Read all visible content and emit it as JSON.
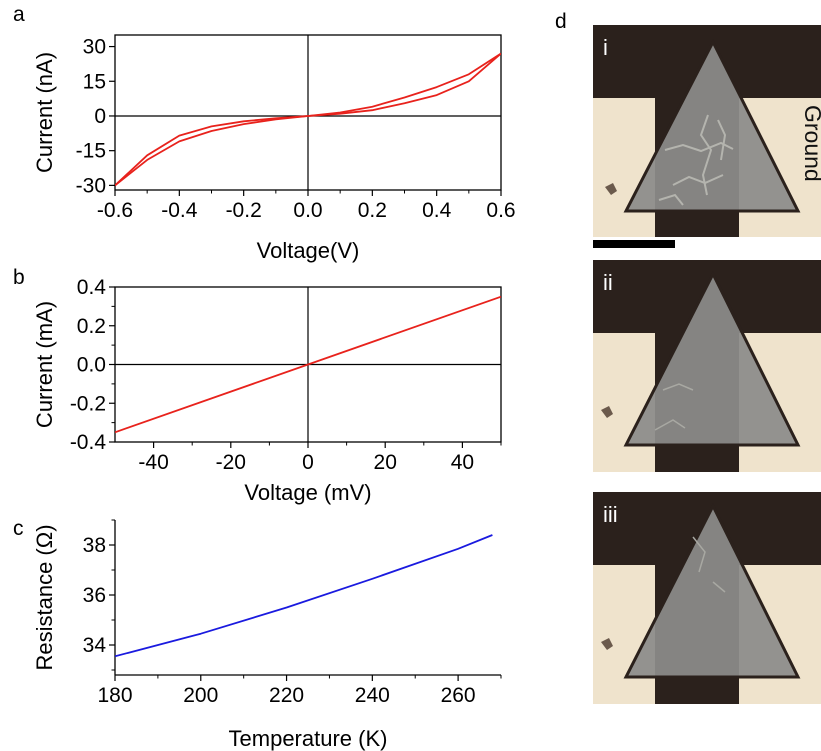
{
  "chart_data": [
    {
      "panel": "a",
      "type": "line",
      "xlabel": "Voltage(V)",
      "ylabel": "Current (nA)",
      "xlim": [
        -0.6,
        0.6
      ],
      "ylim": [
        -32,
        35
      ],
      "xticks": [
        -0.6,
        -0.4,
        -0.2,
        0.0,
        0.2,
        0.4,
        0.6
      ],
      "xtick_labels": [
        "-0.6",
        "-0.4",
        "-0.2",
        "0.0",
        "0.2",
        "0.4",
        "0.6"
      ],
      "yticks": [
        -30,
        -15,
        0,
        15,
        30
      ],
      "ytick_labels": [
        "-30",
        "-15",
        "0",
        "15",
        "30"
      ],
      "color": "#e8221c",
      "series": [
        {
          "x": [
            -0.6,
            -0.5,
            -0.4,
            -0.3,
            -0.2,
            -0.1,
            0.0,
            0.1,
            0.2,
            0.3,
            0.4,
            0.5,
            0.6
          ],
          "y": [
            -30,
            -19,
            -11,
            -6.5,
            -3.5,
            -1.5,
            0,
            1.0,
            2.5,
            5.5,
            9.0,
            15,
            27
          ]
        },
        {
          "x": [
            -0.6,
            -0.5,
            -0.4,
            -0.3,
            -0.2,
            -0.1,
            0.0,
            0.1,
            0.2,
            0.3,
            0.4,
            0.5,
            0.6
          ],
          "y": [
            -30,
            -17,
            -8.5,
            -4.5,
            -2.3,
            -1.0,
            0,
            1.5,
            4.0,
            8.0,
            12.5,
            18,
            27
          ]
        }
      ]
    },
    {
      "panel": "b",
      "type": "line",
      "xlabel": "Voltage (mV)",
      "ylabel": "Current (mA)",
      "xlim": [
        -50,
        50
      ],
      "ylim": [
        -0.4,
        0.4
      ],
      "xticks": [
        -40,
        -20,
        0,
        20,
        40
      ],
      "xtick_labels": [
        "-40",
        "-20",
        "0",
        "20",
        "40"
      ],
      "yticks": [
        -0.4,
        -0.2,
        0.0,
        0.2,
        0.4
      ],
      "ytick_labels": [
        "-0.4",
        "-0.2",
        "0.0",
        "0.2",
        "0.4"
      ],
      "color": "#e8221c",
      "series": [
        {
          "x": [
            -50,
            50
          ],
          "y": [
            -0.35,
            0.35
          ]
        }
      ]
    },
    {
      "panel": "c",
      "type": "line",
      "xlabel": "Temperature (K)",
      "ylabel": "Resistance (Ω)",
      "xlim": [
        180,
        270
      ],
      "ylim": [
        32.8,
        39
      ],
      "xticks": [
        180,
        200,
        220,
        240,
        260
      ],
      "xtick_labels": [
        "180",
        "200",
        "220",
        "240",
        "260"
      ],
      "yticks": [
        34,
        36,
        38
      ],
      "ytick_labels": [
        "34",
        "36",
        "38"
      ],
      "color": "#1a1adf",
      "series": [
        {
          "x": [
            180,
            200,
            220,
            240,
            260,
            268
          ],
          "y": [
            33.55,
            34.45,
            35.5,
            36.65,
            37.85,
            38.4
          ]
        }
      ]
    }
  ],
  "panel_letters": {
    "a": "a",
    "b": "b",
    "c": "c",
    "d": "d"
  },
  "micrographs": {
    "labels": [
      "i",
      "ii",
      "iii"
    ],
    "electrode_label": "Ground"
  },
  "colors": {
    "background_dark": "#2b211c",
    "electrode": "#efe3cc",
    "flake": "#8c8c8a",
    "crack": "#b4b4ae"
  }
}
